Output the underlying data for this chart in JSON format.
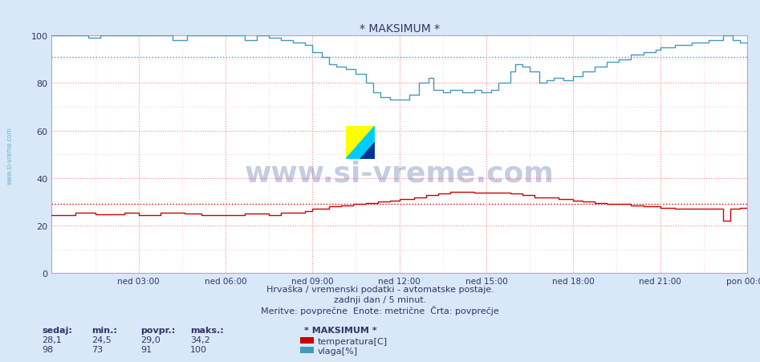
{
  "title": "* MAKSIMUM *",
  "background_color": "#d8e8f8",
  "plot_bg_color": "#ffffff",
  "grid_color_major": "#ff8888",
  "grid_color_minor": "#ffcccc",
  "xlim": [
    0,
    288
  ],
  "ylim": [
    0,
    100
  ],
  "yticks": [
    0,
    20,
    40,
    60,
    80,
    100
  ],
  "xtick_labels": [
    "ned 03:00",
    "ned 06:00",
    "ned 09:00",
    "ned 12:00",
    "ned 15:00",
    "ned 18:00",
    "ned 21:00",
    "pon 00:00"
  ],
  "xtick_positions": [
    36,
    72,
    108,
    144,
    180,
    216,
    252,
    288
  ],
  "temp_color": "#cc0000",
  "hum_color": "#4499bb",
  "temp_avg_line": 29.0,
  "hum_avg_line": 91.0,
  "watermark": "www.si-vreme.com",
  "subtitle1": "Hrvaška / vremenski podatki - avtomatske postaje.",
  "subtitle2": "zadnji dan / 5 minut.",
  "subtitle3": "Meritve: povprečne  Enote: metrične  Črta: povprečje",
  "legend_header": "* MAKSIMUM *",
  "legend_items": [
    {
      "label": "temperatura[C]",
      "color": "#cc0000"
    },
    {
      "label": "vlaga[%]",
      "color": "#4499bb"
    }
  ],
  "stats": {
    "headers": [
      "sedaj:",
      "min.:",
      "povpr.:",
      "maks.:"
    ],
    "temp_row": [
      "28,1",
      "24,5",
      "29,0",
      "34,2"
    ],
    "hum_row": [
      "98",
      "73",
      "91",
      "100"
    ]
  }
}
